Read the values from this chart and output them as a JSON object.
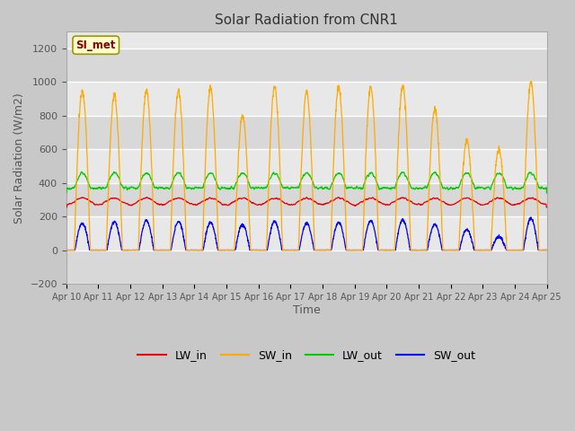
{
  "title": "Solar Radiation from CNR1",
  "xlabel": "Time",
  "ylabel": "Solar Radiation (W/m2)",
  "ylim": [
    -200,
    1300
  ],
  "yticks": [
    -200,
    0,
    200,
    400,
    600,
    800,
    1000,
    1200
  ],
  "xlim_start": 0,
  "xlim_end": 15,
  "xtick_labels": [
    "Apr 10",
    "Apr 11",
    "Apr 12",
    "Apr 13",
    "Apr 14",
    "Apr 15",
    "Apr 16",
    "Apr 17",
    "Apr 18",
    "Apr 19",
    "Apr 20",
    "Apr 21",
    "Apr 22",
    "Apr 23",
    "Apr 24",
    "Apr 25"
  ],
  "legend_label": "SI_met",
  "legend_box_facecolor": "#ffffcc",
  "legend_box_edgecolor": "#999900",
  "series_colors": {
    "LW_in": "#ee0000",
    "SW_in": "#ffaa00",
    "LW_out": "#00cc00",
    "SW_out": "#0000ff"
  },
  "bg_color": "#c8c8c8",
  "plot_bg_light": "#e8e8e8",
  "plot_bg_dark": "#d8d8d8",
  "grid_color": "#ffffff",
  "n_days": 15,
  "points_per_day": 144,
  "figsize": [
    6.4,
    4.8
  ],
  "dpi": 100
}
